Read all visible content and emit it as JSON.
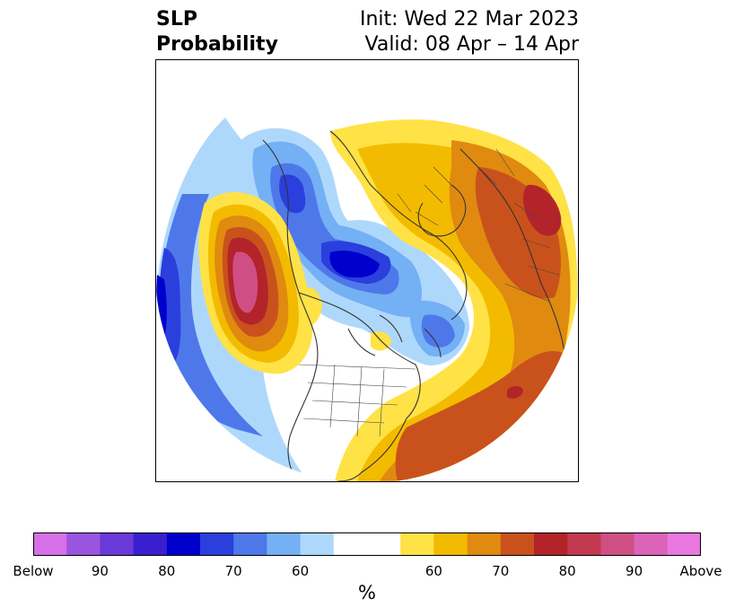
{
  "title": {
    "left_line1": "SLP",
    "left_line2": "Probability",
    "right_line1": "Init: Wed 22 Mar 2023",
    "right_line2": "Valid: 08 Apr – 14 Apr"
  },
  "colorbar": {
    "unit": "%",
    "colors": [
      "#d670e8",
      "#9a55e0",
      "#6a3ad8",
      "#3a1fd0",
      "#0000cc",
      "#2a3fdc",
      "#4e78ea",
      "#74b0f4",
      "#aed8fb",
      "#ffffff",
      "#ffffff",
      "#ffe246",
      "#f3bb00",
      "#e08a10",
      "#c9521c",
      "#b2242a",
      "#c23950",
      "#cf4f84",
      "#db64b8",
      "#e877e0"
    ],
    "tick_labels": [
      "Below",
      "90",
      "80",
      "70",
      "60",
      "60",
      "70",
      "80",
      "90",
      "Above"
    ]
  },
  "map": {
    "projection": "north-polar-stereographic",
    "variable": "sea-level-pressure-probability",
    "anomalies": [
      {
        "region": "north-pacific-gulf-of-alaska",
        "category": "above",
        "peak_percent": 90
      },
      {
        "region": "arctic-ocean-canadian-archipelago",
        "category": "below",
        "peak_percent": 80
      },
      {
        "region": "eastern-siberia",
        "category": "below",
        "peak_percent": 80
      },
      {
        "region": "western-north-pacific",
        "category": "below",
        "peak_percent": 90
      },
      {
        "region": "north-atlantic-western-europe",
        "category": "above",
        "peak_percent": 80
      },
      {
        "region": "central-asia",
        "category": "above",
        "peak_percent": 80
      },
      {
        "region": "eastern-united-states",
        "category": "above",
        "peak_percent": 70
      }
    ]
  }
}
